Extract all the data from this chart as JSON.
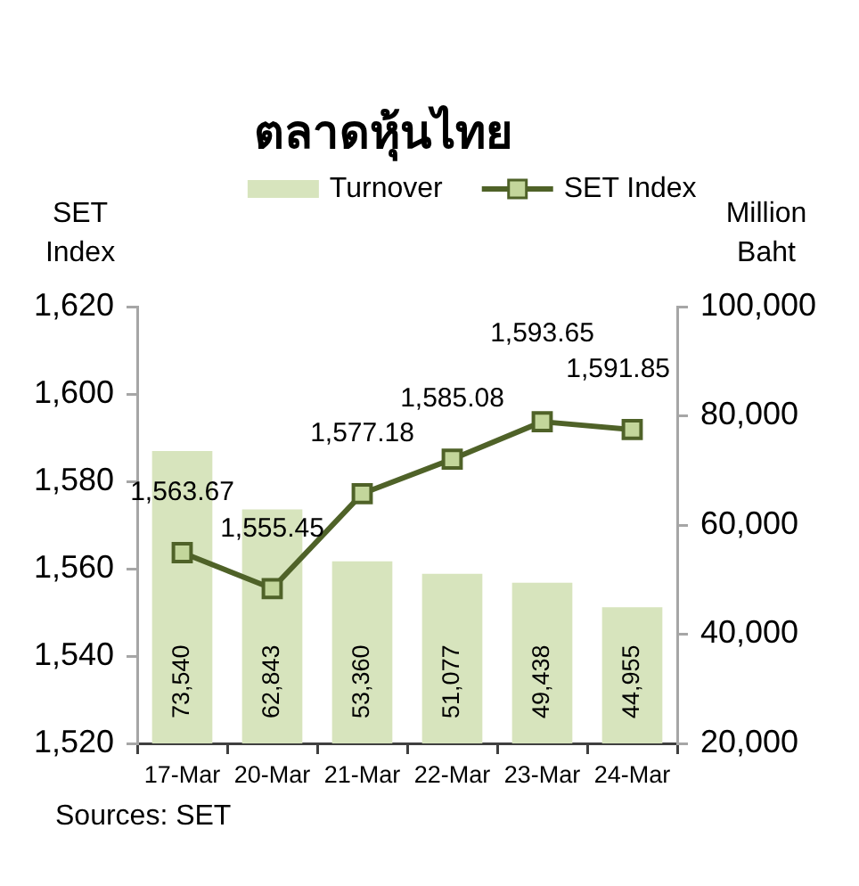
{
  "chart_data": {
    "type": "bar",
    "title": "ตลาดหุ้นไทย",
    "ylabel": "SET Index",
    "y2label": "Million Baht",
    "categories": [
      "17-Mar",
      "20-Mar",
      "21-Mar",
      "22-Mar",
      "23-Mar",
      "24-Mar"
    ],
    "series": [
      {
        "name": "Turnover",
        "axis": "y2",
        "color": "#d7e4bd",
        "values": [
          73540,
          62843,
          53360,
          51077,
          49438,
          44955
        ],
        "value_labels": [
          "73,540",
          "62,843",
          "53,360",
          "51,077",
          "49,438",
          "44,955"
        ]
      },
      {
        "name": "SET Index",
        "type": "line",
        "axis": "y",
        "color": "#4f6228",
        "values": [
          1563.67,
          1555.45,
          1577.18,
          1585.08,
          1593.65,
          1591.85
        ],
        "value_labels": [
          "1,563.67",
          "1,555.45",
          "1,577.18",
          "1,585.08",
          "1,593.65",
          "1,591.85"
        ]
      }
    ],
    "ylim": [
      1520,
      1620
    ],
    "yticks": [
      {
        "value": 1520,
        "label": "1,520"
      },
      {
        "value": 1540,
        "label": "1,540"
      },
      {
        "value": 1560,
        "label": "1,560"
      },
      {
        "value": 1580,
        "label": "1,580"
      },
      {
        "value": 1600,
        "label": "1,600"
      },
      {
        "value": 1620,
        "label": "1,620"
      }
    ],
    "y2lim": [
      20000,
      100000
    ],
    "y2ticks": [
      {
        "value": 20000,
        "label": "20,000"
      },
      {
        "value": 40000,
        "label": "40,000"
      },
      {
        "value": 60000,
        "label": "60,000"
      },
      {
        "value": 80000,
        "label": "80,000"
      },
      {
        "value": 100000,
        "label": "100,000"
      }
    ],
    "legend": "top",
    "grid": false,
    "marker": "square",
    "annotations": [
      "Sources: SET"
    ]
  }
}
